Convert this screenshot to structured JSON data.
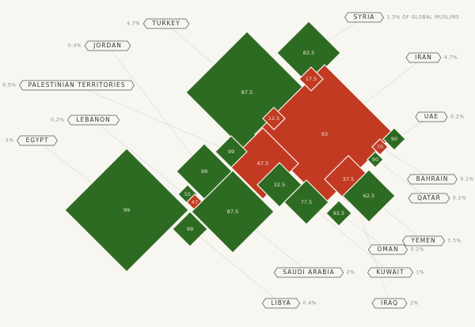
{
  "chart_data": {
    "type": "diamond",
    "countries": [
      {
        "name": "TURKEY",
        "share": "4.7%"
      },
      {
        "name": "SYRIA",
        "share": "1.3% OF GLOBAL MUSLIMS"
      },
      {
        "name": "JORDAN",
        "share": "0.4%"
      },
      {
        "name": "PALESTINIAN TERRITORIES",
        "share": "0.5%"
      },
      {
        "name": "LEBANON",
        "share": "0.2%"
      },
      {
        "name": "EGYPT",
        "share": "5%"
      },
      {
        "name": "IRAN",
        "share": "4.7%"
      },
      {
        "name": "UAE",
        "share": "0.2%"
      },
      {
        "name": "BAHRAIN",
        "share": "0.1%"
      },
      {
        "name": "QATAR",
        "share": "0.1%"
      },
      {
        "name": "YEMEN",
        "share": "1.5%"
      },
      {
        "name": "OMAN",
        "share": "0.2%"
      },
      {
        "name": "KUWAIT",
        "share": "1%"
      },
      {
        "name": "IRAQ",
        "share": "2%"
      },
      {
        "name": "SAUDI ARABIA",
        "share": "2%"
      },
      {
        "name": "LIBYA",
        "share": "0.4%"
      }
    ],
    "diamonds": [
      {
        "value": 87.5,
        "color": "#2e6b22"
      },
      {
        "value": 82.5,
        "color": "#2e6b22"
      },
      {
        "value": 93,
        "color": "#c23a22"
      },
      {
        "value": 17.5,
        "color": "#c23a22"
      },
      {
        "value": 12.5,
        "color": "#c23a22"
      },
      {
        "value": 67.5,
        "color": "#c23a22"
      },
      {
        "value": 99,
        "color": "#2e6b22"
      },
      {
        "value": 99,
        "color": "#2e6b22"
      },
      {
        "value": 99,
        "color": "#2e6b22"
      },
      {
        "value": 55,
        "color": "#2e6b22"
      },
      {
        "value": 47,
        "color": "#c23a22"
      },
      {
        "value": 87.5,
        "color": "#2e6b22"
      },
      {
        "value": 32.5,
        "color": "#2e6b22"
      },
      {
        "value": 99,
        "color": "#2e6b22"
      },
      {
        "value": 77.5,
        "color": "#2e6b22"
      },
      {
        "value": 37.5,
        "color": "#c23a22"
      },
      {
        "value": 62.5,
        "color": "#2e6b22"
      },
      {
        "value": 92.5,
        "color": "#2e6b22"
      },
      {
        "value": 90,
        "color": "#2e6b22"
      },
      {
        "value": 70,
        "color": "#c23a22"
      },
      {
        "value": 90,
        "color": "#2e6b22"
      }
    ]
  }
}
